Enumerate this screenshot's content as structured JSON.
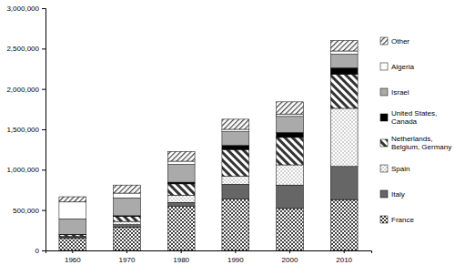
{
  "chart_data": {
    "type": "bar",
    "stacked": true,
    "grid": false,
    "legend": "right",
    "categories": [
      "1960",
      "1970",
      "1980",
      "1990",
      "2000",
      "2010"
    ],
    "ylim": [
      0,
      3000000
    ],
    "yticks": [
      0,
      {
        "value": 500000,
        "label": "500,000"
      },
      {
        "value": 1000000,
        "label": "1,000,000"
      },
      {
        "value": 1500000,
        "label": "1,500,000"
      },
      {
        "value": 2000000,
        "label": "2,000,000"
      },
      {
        "value": 2500000,
        "label": "2,500,000"
      },
      {
        "value": 3000000,
        "label": "3,000,000"
      }
    ],
    "series": [
      {
        "name": "France",
        "color": "#444444",
        "values": [
          150000,
          290000,
          545000,
          640000,
          520000,
          630000
        ]
      },
      {
        "name": "Italy",
        "color": "#666666",
        "values": [
          15000,
          30000,
          50000,
          180000,
          290000,
          410000
        ]
      },
      {
        "name": "Spain",
        "color": "#888888",
        "values": [
          10000,
          40000,
          90000,
          100000,
          250000,
          720000
        ]
      },
      {
        "name": "Netherlands, Belgium, Germany",
        "color": "#333333",
        "values": [
          20000,
          60000,
          140000,
          330000,
          340000,
          420000
        ]
      },
      {
        "name": "United States, Canada",
        "color": "#000000",
        "values": [
          5000,
          10000,
          20000,
          50000,
          60000,
          80000
        ]
      },
      {
        "name": "Israel",
        "color": "#aaaaaa",
        "values": [
          190000,
          220000,
          220000,
          170000,
          200000,
          170000
        ]
      },
      {
        "name": "Algeria",
        "color": "#ffffff",
        "values": [
          210000,
          60000,
          40000,
          30000,
          30000,
          40000
        ]
      },
      {
        "name": "Other",
        "color": "#444444",
        "values": [
          65000,
          100000,
          120000,
          125000,
          150000,
          130000
        ]
      }
    ]
  }
}
